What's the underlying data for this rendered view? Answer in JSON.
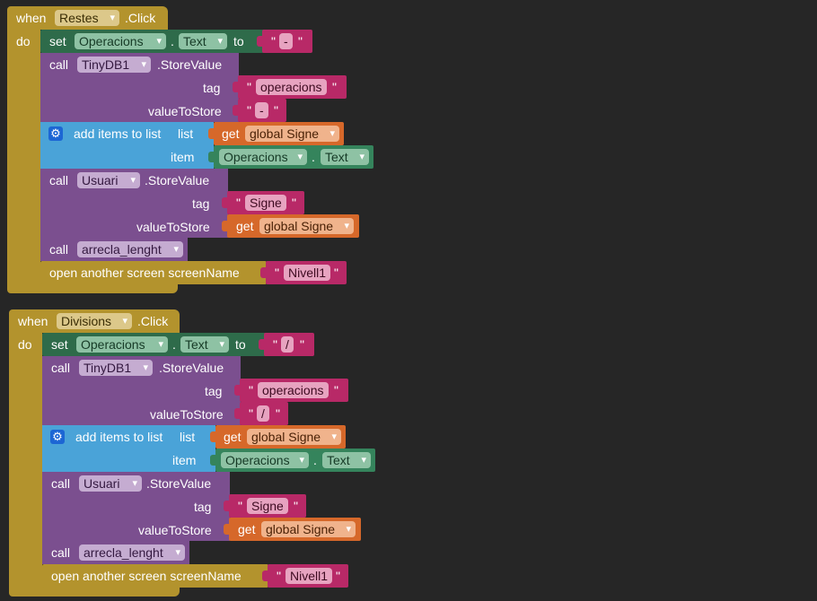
{
  "blocks": [
    {
      "when": "when",
      "component": "Restes",
      "event": ".Click",
      "do": "do",
      "set_kw": "set",
      "set_component": "Operacions",
      "set_dot": ".",
      "set_prop": "Text",
      "set_to": "to",
      "set_value": "-",
      "call1_kw": "call",
      "call1_component": "TinyDB1",
      "call1_method": ".StoreValue",
      "call1_tag_label": "tag",
      "call1_tag_value": "operacions",
      "call1_vts_label": "valueToStore",
      "call1_vts_value": "-",
      "add_label": "add items to list",
      "add_list_label": "list",
      "add_list_get": "get",
      "add_list_var": "global Signe",
      "add_item_label": "item",
      "add_item_component": "Operacions",
      "add_item_dot": ".",
      "add_item_prop": "Text",
      "call2_kw": "call",
      "call2_component": "Usuari",
      "call2_method": ".StoreValue",
      "call2_tag_label": "tag",
      "call2_tag_value": "Signe",
      "call2_vts_label": "valueToStore",
      "call2_vts_get": "get",
      "call2_vts_var": "global Signe",
      "call3_kw": "call",
      "call3_proc": "arrecla_lenght",
      "screen_label": "open another screen  screenName",
      "screen_value": "Nivell1"
    },
    {
      "when": "when",
      "component": "Divisions",
      "event": ".Click",
      "do": "do",
      "set_kw": "set",
      "set_component": "Operacions",
      "set_dot": ".",
      "set_prop": "Text",
      "set_to": "to",
      "set_value": "/",
      "call1_kw": "call",
      "call1_component": "TinyDB1",
      "call1_method": ".StoreValue",
      "call1_tag_label": "tag",
      "call1_tag_value": "operacions",
      "call1_vts_label": "valueToStore",
      "call1_vts_value": "/",
      "add_label": "add items to list",
      "add_list_label": "list",
      "add_list_get": "get",
      "add_list_var": "global Signe",
      "add_item_label": "item",
      "add_item_component": "Operacions",
      "add_item_dot": ".",
      "add_item_prop": "Text",
      "call2_kw": "call",
      "call2_component": "Usuari",
      "call2_method": ".StoreValue",
      "call2_tag_label": "tag",
      "call2_tag_value": "Signe",
      "call2_vts_label": "valueToStore",
      "call2_vts_get": "get",
      "call2_vts_var": "global Signe",
      "call3_kw": "call",
      "call3_proc": "arrecla_lenght",
      "screen_label": "open another screen  screenName",
      "screen_value": "Nivell1"
    }
  ],
  "icons": {
    "mutator": "gear-icon"
  },
  "colors": {
    "background": "#262626",
    "event": "#b3932d",
    "setter": "#2e6b4a",
    "procedure": "#7b4f8f",
    "list": "#4aa3d8",
    "text": "#b82967",
    "variable": "#d6682a",
    "component": "#35845c"
  }
}
